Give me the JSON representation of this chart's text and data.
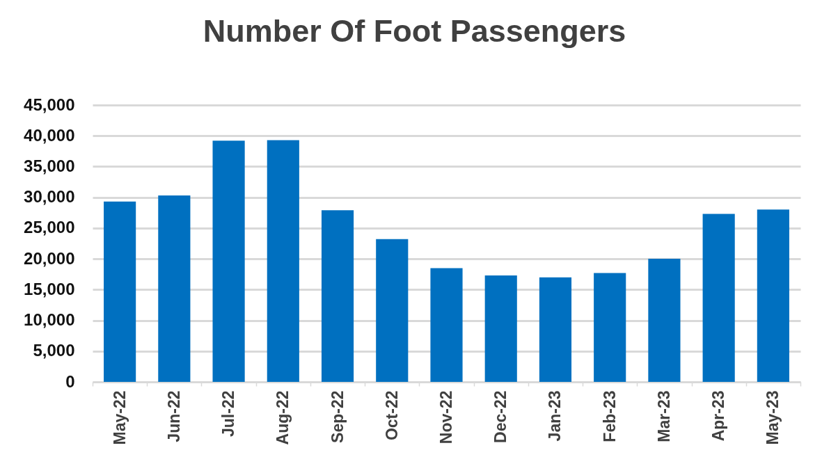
{
  "chart_data": {
    "type": "bar",
    "title": "Number Of Foot Passengers",
    "categories": [
      "May-22",
      "Jun-22",
      "Jul-22",
      "Aug-22",
      "Sep-22",
      "Oct-22",
      "Nov-22",
      "Dec-22",
      "Jan-23",
      "Feb-23",
      "Mar-23",
      "Apr-23",
      "May-23"
    ],
    "values": [
      29300,
      30300,
      39200,
      39300,
      27900,
      23200,
      18500,
      17300,
      17000,
      17700,
      20000,
      27300,
      28000
    ],
    "color": "#0070c0",
    "ylim": [
      0,
      45000
    ],
    "yticks": [
      0,
      {
        "value": 5000,
        "label": "5,000"
      },
      {
        "value": 10000,
        "label": "10,000"
      },
      {
        "value": 15000,
        "label": "15,000"
      },
      {
        "value": 20000,
        "label": "20,000"
      },
      {
        "value": 25000,
        "label": "25,000"
      },
      {
        "value": 30000,
        "label": "30,000"
      },
      {
        "value": 35000,
        "label": "35,000"
      },
      {
        "value": 40000,
        "label": "40,000"
      },
      {
        "value": 45000,
        "label": "45,000"
      }
    ],
    "grid": "y"
  }
}
